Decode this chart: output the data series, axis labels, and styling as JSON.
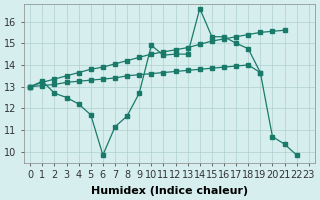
{
  "xlabel": "Humidex (Indice chaleur)",
  "background_color": "#d6eeee",
  "grid_color": "#b0d0d0",
  "line_color": "#1a7a6a",
  "xlim": [
    -0.5,
    23.5
  ],
  "ylim": [
    9.5,
    16.8
  ],
  "yticks": [
    10,
    11,
    12,
    13,
    14,
    15,
    16
  ],
  "xticks": [
    0,
    1,
    2,
    3,
    4,
    5,
    6,
    7,
    8,
    9,
    10,
    11,
    12,
    13,
    14,
    15,
    16,
    17,
    18,
    19,
    20,
    21,
    22,
    23
  ],
  "line1_x": [
    0,
    1,
    2,
    3,
    4,
    5,
    6,
    7,
    8,
    9,
    10,
    11,
    12,
    13,
    14,
    15,
    16,
    17,
    18,
    19,
    20,
    21,
    22
  ],
  "line1_y": [
    13.0,
    13.25,
    12.7,
    12.5,
    12.2,
    11.7,
    9.85,
    11.15,
    11.65,
    12.7,
    14.9,
    14.45,
    14.5,
    14.5,
    16.6,
    15.3,
    15.3,
    15.0,
    14.75,
    13.65,
    10.7,
    10.35,
    9.85
  ],
  "line2_x": [
    0,
    1,
    2,
    3,
    4,
    5,
    6,
    7,
    8,
    9,
    10,
    11,
    12,
    13,
    14,
    15,
    16,
    17,
    18,
    19,
    20,
    21
  ],
  "line2_y": [
    13.0,
    13.2,
    13.35,
    13.5,
    13.65,
    13.8,
    13.9,
    14.05,
    14.2,
    14.35,
    14.5,
    14.6,
    14.7,
    14.8,
    14.95,
    15.1,
    15.2,
    15.3,
    15.4,
    15.5,
    15.55,
    15.6
  ],
  "line3_x": [
    0,
    1,
    2,
    3,
    4,
    5,
    6,
    7,
    8,
    9,
    10,
    11,
    12,
    13,
    14,
    15,
    16,
    17,
    18,
    19
  ],
  "line3_y": [
    13.0,
    13.05,
    13.1,
    13.2,
    13.25,
    13.3,
    13.35,
    13.4,
    13.5,
    13.55,
    13.6,
    13.65,
    13.7,
    13.75,
    13.8,
    13.85,
    13.9,
    13.95,
    14.0,
    13.65
  ],
  "xlabel_fontsize": 8,
  "tick_fontsize": 7
}
